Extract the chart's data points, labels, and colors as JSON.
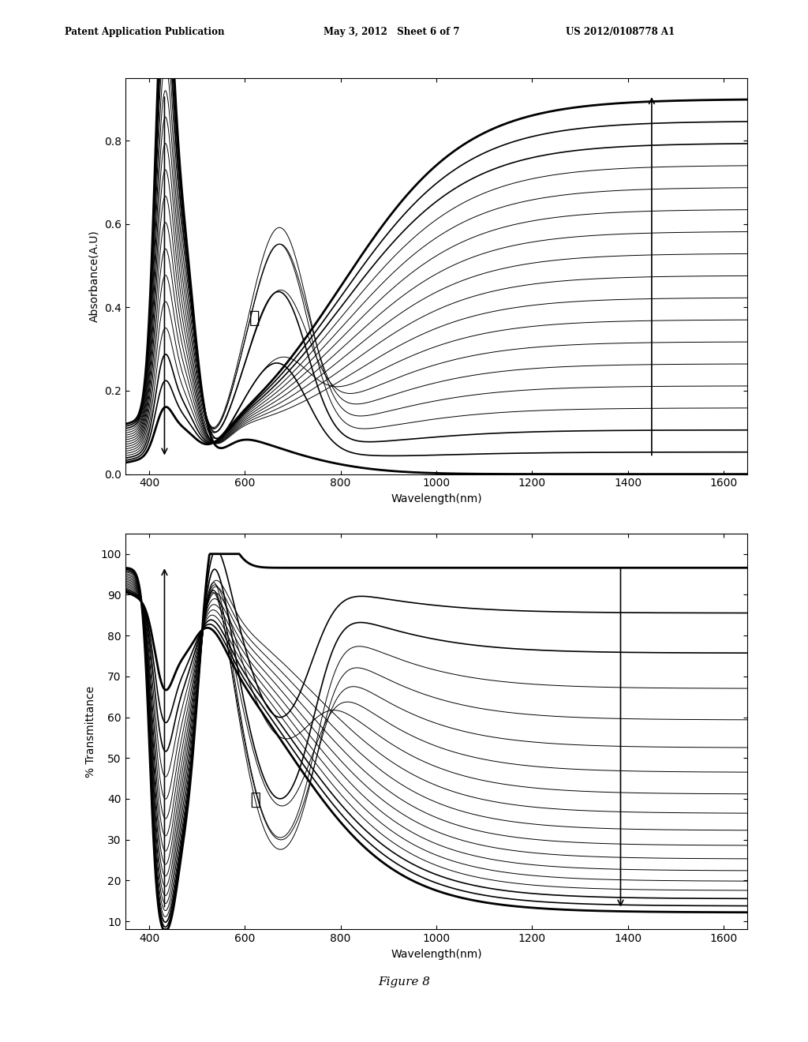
{
  "header_left": "Patent Application Publication",
  "header_mid": "May 3, 2012   Sheet 6 of 7",
  "header_right": "US 2012/0108778 A1",
  "figure_label": "Figure 8",
  "plot1": {
    "ylabel": "Absorbance(A.U)",
    "xlabel": "Wavelength(nm)",
    "xlim": [
      350,
      1650
    ],
    "ylim": [
      0.0,
      0.95
    ],
    "yticks": [
      0.0,
      0.2,
      0.4,
      0.6,
      0.8
    ],
    "xticks": [
      400,
      600,
      800,
      1000,
      1200,
      1400,
      1600
    ],
    "n_curves": 18
  },
  "plot2": {
    "ylabel": "% Transmittance",
    "xlabel": "Wavelength(nm)",
    "xlim": [
      350,
      1650
    ],
    "ylim": [
      8,
      105
    ],
    "yticks": [
      10,
      20,
      30,
      40,
      50,
      60,
      70,
      80,
      90,
      100
    ],
    "xticks": [
      400,
      600,
      800,
      1000,
      1200,
      1400,
      1600
    ],
    "n_curves": 18
  },
  "bg_color": "#ffffff",
  "line_color": "#000000"
}
